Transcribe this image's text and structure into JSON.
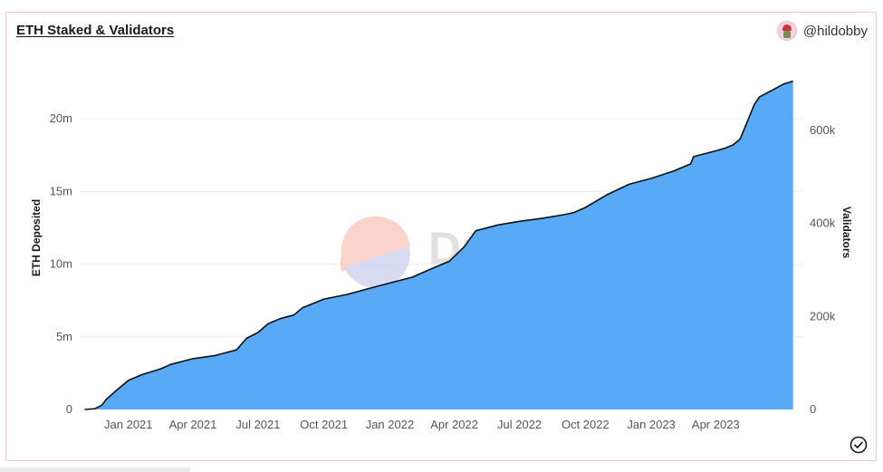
{
  "header": {
    "title": "ETH Staked & Validators",
    "author": "@hildobby"
  },
  "watermark": "Dune",
  "colors": {
    "area_fill": "#58aaf6",
    "line": "#111111",
    "grid": "#ececec",
    "border": "#f3c7c2"
  },
  "chart_data": {
    "type": "area",
    "title": "ETH Staked & Validators",
    "ylabel": "ETH Deposited",
    "y2label": "Validators",
    "ylim": [
      0,
      24000000
    ],
    "y2lim": [
      0,
      750000
    ],
    "yticks": [
      0,
      5000000,
      10000000,
      15000000,
      20000000
    ],
    "ytick_labels": [
      "0",
      "5m",
      "10m",
      "15m",
      "20m"
    ],
    "y2ticks": [
      0,
      200000,
      400000,
      600000
    ],
    "y2tick_labels": [
      "0",
      "200k",
      "400k",
      "600k"
    ],
    "xlim": [
      "2020-10-25",
      "2023-07-31"
    ],
    "xticks": [
      "2021-01-01",
      "2021-04-01",
      "2021-07-01",
      "2021-10-01",
      "2022-01-01",
      "2022-04-01",
      "2022-07-01",
      "2022-10-01",
      "2023-01-01",
      "2023-04-01"
    ],
    "xtick_labels": [
      "Jan 2021",
      "Apr 2021",
      "Jul 2021",
      "Oct 2021",
      "Jan 2022",
      "Apr 2022",
      "Jul 2022",
      "Oct 2022",
      "Jan 2023",
      "Apr 2023"
    ],
    "grid": true,
    "series": [
      {
        "name": "ETH Deposited",
        "x": [
          "2020-11-01",
          "2020-11-15",
          "2020-11-25",
          "2020-12-01",
          "2020-12-15",
          "2021-01-01",
          "2021-01-20",
          "2021-02-15",
          "2021-03-01",
          "2021-04-01",
          "2021-05-01",
          "2021-06-01",
          "2021-06-15",
          "2021-07-01",
          "2021-07-15",
          "2021-08-01",
          "2021-08-20",
          "2021-09-01",
          "2021-10-01",
          "2021-11-01",
          "2021-12-01",
          "2022-01-01",
          "2022-02-01",
          "2022-03-01",
          "2022-03-25",
          "2022-04-15",
          "2022-05-01",
          "2022-06-01",
          "2022-07-01",
          "2022-08-01",
          "2022-09-01",
          "2022-09-15",
          "2022-10-01",
          "2022-11-01",
          "2022-12-01",
          "2023-01-01",
          "2023-02-01",
          "2023-02-25",
          "2023-03-01",
          "2023-04-01",
          "2023-04-15",
          "2023-04-25",
          "2023-05-05",
          "2023-05-15",
          "2023-05-25",
          "2023-06-01",
          "2023-06-20",
          "2023-07-05",
          "2023-07-18"
        ],
        "values": [
          0,
          50000,
          300000,
          700000,
          1300000,
          2000000,
          2400000,
          2800000,
          3100000,
          3500000,
          3700000,
          4100000,
          4900000,
          5300000,
          5900000,
          6250000,
          6500000,
          7000000,
          7600000,
          7900000,
          8300000,
          8700000,
          9100000,
          9700000,
          10200000,
          11200000,
          12300000,
          12700000,
          12950000,
          13150000,
          13400000,
          13550000,
          13900000,
          14800000,
          15500000,
          15900000,
          16400000,
          16900000,
          17400000,
          17800000,
          18000000,
          18200000,
          18600000,
          19800000,
          21000000,
          21500000,
          22000000,
          22400000,
          22600000
        ]
      }
    ]
  }
}
